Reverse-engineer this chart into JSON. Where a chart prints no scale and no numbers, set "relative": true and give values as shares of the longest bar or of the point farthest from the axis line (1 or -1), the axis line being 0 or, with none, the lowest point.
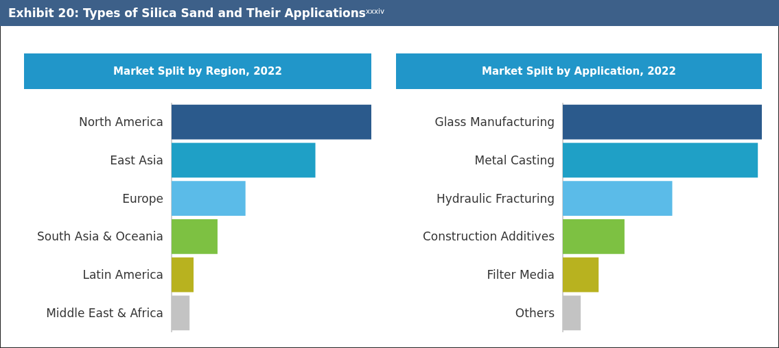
{
  "chart_data": [
    {
      "type": "bar",
      "orientation": "horizontal",
      "relative": true,
      "title": "Exhibit 20: Types of Silica Sand and Their Applications$^{xxxiv}$",
      "subtitle": "Market Split by Region, 2022",
      "categories": [
        "North America",
        "East Asia",
        "Europe",
        "South Asia & Oceania",
        "Latin America",
        "Middle East & Africa"
      ],
      "values": [
        1,
        0.72,
        0.37,
        0.23,
        0.11,
        0.09
      ],
      "colors": [
        "#2b5a8c",
        "#1fa0c6",
        "#5bbbe8",
        "#7dc142",
        "#b8b21f",
        "#c3c3c3"
      ]
    },
    {
      "type": "bar",
      "orientation": "horizontal",
      "relative": true,
      "subtitle": "Market Split by Application, 2022",
      "categories": [
        "Glass Manufacturing",
        "Metal Casting",
        "Hydraulic Fracturing",
        "Construction Additives",
        "Filter Media",
        "Others"
      ],
      "values": [
        1,
        0.98,
        0.55,
        0.31,
        0.18,
        0.09
      ],
      "colors": [
        "#2b5a8c",
        "#1fa0c6",
        "#5bbbe8",
        "#7dc142",
        "#b8b21f",
        "#c3c3c3"
      ]
    }
  ]
}
